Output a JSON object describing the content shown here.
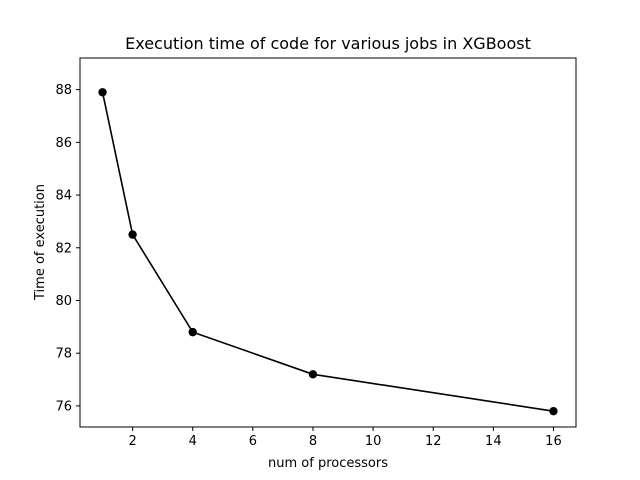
{
  "chart_data": {
    "type": "line",
    "title": "Execution time of code for various jobs in XGBoost",
    "xlabel": "num of processors",
    "ylabel": "Time of execution",
    "xlim": [
      0.25,
      16.75
    ],
    "ylim": [
      75.2,
      89.2
    ],
    "x_ticks": [
      2,
      4,
      6,
      8,
      10,
      12,
      14,
      16
    ],
    "y_ticks": [
      76,
      78,
      80,
      82,
      84,
      86,
      88
    ],
    "grid": false,
    "series": [
      {
        "color": "#000000",
        "marker": "circle",
        "x": [
          1,
          2,
          4,
          8,
          16
        ],
        "y": [
          87.9,
          82.5,
          78.8,
          77.2,
          75.8
        ]
      }
    ]
  }
}
